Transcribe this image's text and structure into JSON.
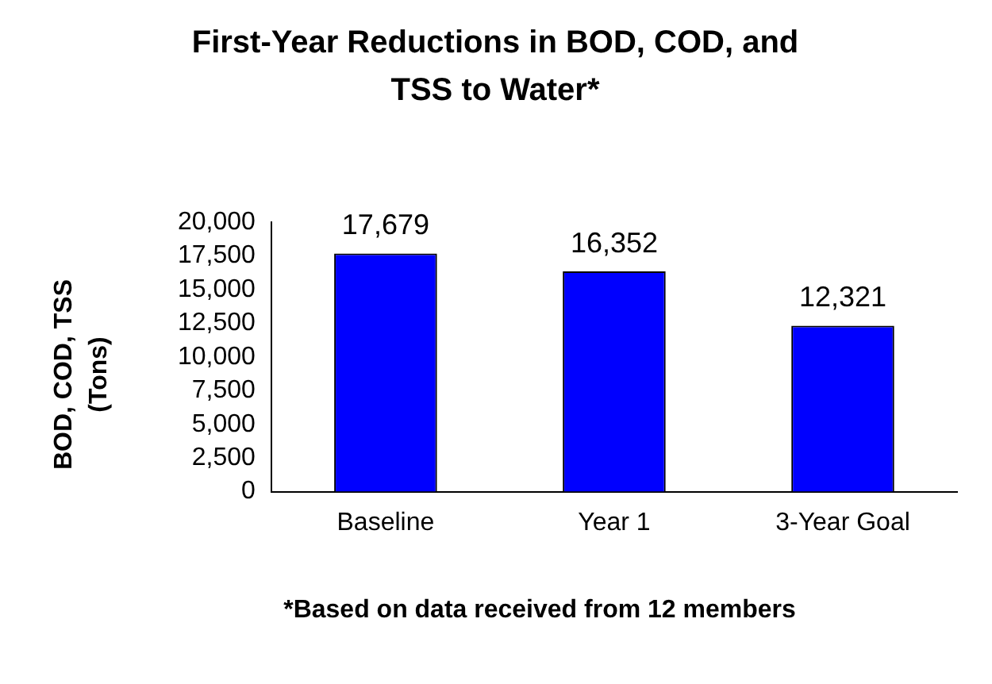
{
  "chart_data": {
    "type": "bar",
    "title": "First-Year Reductions in BOD, COD, and TSS to Water*",
    "ylabel": "BOD, COD, TSS (Tons)",
    "annotations": [
      "*Based on data received from 12 members"
    ],
    "categories": [
      "Baseline",
      "Year 1",
      "3-Year Goal"
    ],
    "values": [
      17679,
      16352,
      12321
    ],
    "value_labels": [
      "17,679",
      "16,352",
      "12,321"
    ],
    "color": "#0000ff",
    "ylim": [
      0,
      20000
    ],
    "yticks": [
      0,
      {
        "value": 2500,
        "label": "2,500"
      },
      {
        "value": 5000,
        "label": "5,000"
      },
      {
        "value": 7500,
        "label": "7,500"
      },
      {
        "value": 10000,
        "label": "10,000"
      },
      {
        "value": 12500,
        "label": "12,500"
      },
      {
        "value": 15000,
        "label": "15,000"
      },
      {
        "value": 17500,
        "label": "17,500"
      },
      {
        "value": 20000,
        "label": "20,000"
      }
    ],
    "grid": false,
    "legend": false
  }
}
